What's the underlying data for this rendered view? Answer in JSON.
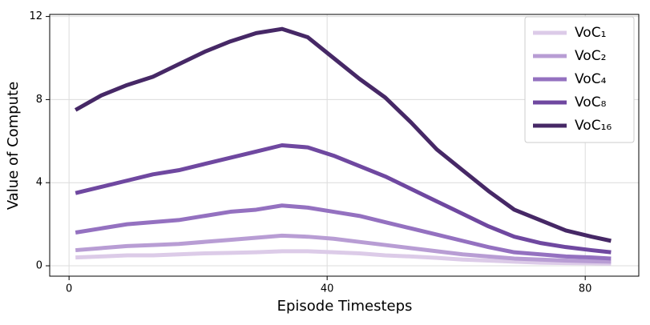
{
  "chart_data": {
    "type": "line",
    "x_label": "Episode Timesteps",
    "y_label": "Value of Compute",
    "x": [
      1,
      5,
      9,
      13,
      17,
      21,
      25,
      29,
      33,
      37,
      41,
      45,
      49,
      53,
      57,
      61,
      65,
      69,
      73,
      77,
      81,
      84
    ],
    "series": [
      {
        "name": "VoC₁",
        "color": "#dccbe8",
        "values": [
          0.4,
          0.45,
          0.5,
          0.5,
          0.55,
          0.6,
          0.62,
          0.65,
          0.7,
          0.7,
          0.65,
          0.6,
          0.5,
          0.45,
          0.38,
          0.3,
          0.25,
          0.2,
          0.15,
          0.13,
          0.12,
          0.1
        ]
      },
      {
        "name": "VoC₂",
        "color": "#b89dd4",
        "values": [
          0.75,
          0.85,
          0.95,
          1.0,
          1.05,
          1.15,
          1.25,
          1.35,
          1.45,
          1.4,
          1.3,
          1.15,
          1.0,
          0.85,
          0.7,
          0.55,
          0.45,
          0.35,
          0.3,
          0.25,
          0.22,
          0.2
        ]
      },
      {
        "name": "VoC₄",
        "color": "#9471c0",
        "values": [
          1.6,
          1.8,
          2.0,
          2.1,
          2.2,
          2.4,
          2.6,
          2.7,
          2.9,
          2.8,
          2.6,
          2.4,
          2.1,
          1.8,
          1.5,
          1.2,
          0.9,
          0.65,
          0.55,
          0.45,
          0.4,
          0.35
        ]
      },
      {
        "name": "VoC₈",
        "color": "#6f48a0",
        "values": [
          3.5,
          3.8,
          4.1,
          4.4,
          4.6,
          4.9,
          5.2,
          5.5,
          5.8,
          5.7,
          5.3,
          4.8,
          4.3,
          3.7,
          3.1,
          2.5,
          1.9,
          1.4,
          1.1,
          0.9,
          0.75,
          0.65
        ]
      },
      {
        "name": "VoC₁₆",
        "color": "#462866",
        "values": [
          7.5,
          8.2,
          8.7,
          9.1,
          9.7,
          10.3,
          10.8,
          11.2,
          11.4,
          11.0,
          10.0,
          9.0,
          8.1,
          6.9,
          5.6,
          4.6,
          3.6,
          2.7,
          2.2,
          1.7,
          1.4,
          1.2
        ]
      }
    ],
    "xlim": [
      -3,
      88.3
    ],
    "ylim": [
      -0.5,
      12.1
    ],
    "xticks": [
      0,
      40,
      80
    ],
    "yticks": [
      0,
      4,
      8,
      12
    ],
    "grid": true,
    "legend": "upper right"
  }
}
